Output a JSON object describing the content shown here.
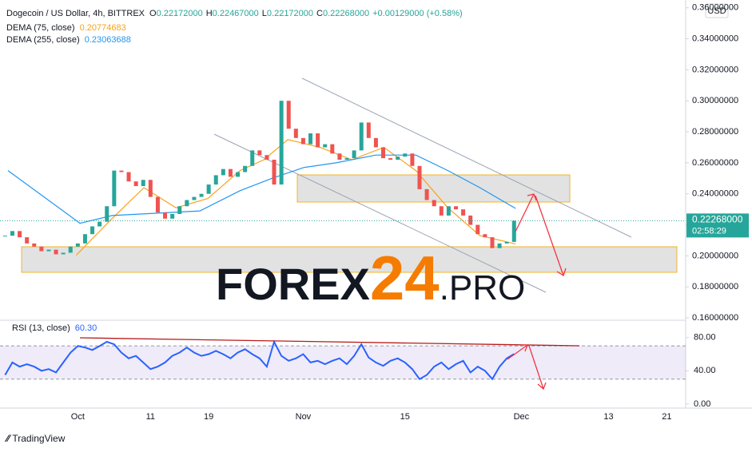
{
  "header": {
    "symbol": "Dogecoin / US Dollar, 4h, BITTREX",
    "ohlc": [
      {
        "label": "O",
        "value": "0.22172000"
      },
      {
        "label": "H",
        "value": "0.22467000"
      },
      {
        "label": "L",
        "value": "0.22172000"
      },
      {
        "label": "C",
        "value": "0.22268000"
      }
    ],
    "change": "+0.00129000 (+0.58%)"
  },
  "watermark": [
    "FOREX",
    "24",
    ".PRO"
  ],
  "branding": "TradingView",
  "chart_data": [
    {
      "type": "candlestick",
      "currency": "USD",
      "last_price_label": "0.22268000",
      "countdown": "02:58:29",
      "up_color": "#26a69a",
      "down_color": "#ef5350",
      "x": [
        0,
        1,
        2,
        3,
        4,
        5,
        6,
        7,
        8,
        9,
        10,
        11,
        12,
        13,
        14,
        15,
        16,
        17,
        18,
        19,
        20,
        21,
        22,
        23,
        24,
        25,
        26,
        27,
        28,
        29,
        30,
        31,
        32,
        33,
        34,
        35,
        36,
        37,
        38,
        39,
        40,
        41,
        42,
        43,
        44,
        45,
        46,
        47,
        48,
        49,
        50,
        51,
        52,
        53,
        54,
        55,
        56,
        57,
        58,
        59,
        60,
        61,
        62,
        63,
        64,
        65,
        66,
        67,
        68,
        69,
        70
      ],
      "values": [
        0.213,
        0.216,
        0.212,
        0.208,
        0.206,
        0.203,
        0.204,
        0.201,
        0.202,
        0.206,
        0.208,
        0.214,
        0.219,
        0.222,
        0.232,
        0.255,
        0.254,
        0.248,
        0.245,
        0.249,
        0.238,
        0.228,
        0.224,
        0.227,
        0.232,
        0.236,
        0.238,
        0.24,
        0.246,
        0.252,
        0.256,
        0.251,
        0.254,
        0.258,
        0.268,
        0.265,
        0.262,
        0.246,
        0.3,
        0.282,
        0.276,
        0.272,
        0.279,
        0.27,
        0.272,
        0.266,
        0.262,
        0.263,
        0.268,
        0.286,
        0.276,
        0.27,
        0.263,
        0.262,
        0.264,
        0.266,
        0.258,
        0.243,
        0.236,
        0.232,
        0.226,
        0.232,
        0.23,
        0.226,
        0.22,
        0.214,
        0.212,
        0.205,
        0.208,
        0.209,
        0.22268
      ],
      "series": [
        {
          "name": "DEMA (75, close)",
          "legend_value": "0.20774683",
          "color": "#f7a21b",
          "x": [
            9.8,
            14.7,
            19.1,
            23.5,
            27.9,
            32.3,
            35.6,
            38.9,
            43.3,
            47.7,
            52.1,
            56.5,
            60.9,
            65.3,
            70.2
          ],
          "values": [
            0.2005,
            0.224,
            0.244,
            0.231,
            0.237,
            0.255,
            0.262,
            0.275,
            0.27,
            0.262,
            0.27,
            0.255,
            0.231,
            0.213,
            0.2077
          ]
        },
        {
          "name": "DEMA (255, close)",
          "legend_value": "0.23063688",
          "color": "#2196f3",
          "x": [
            0.4,
            10.3,
            14.7,
            26.8,
            32.3,
            36.7,
            41.1,
            45.5,
            51,
            56.5,
            60.9,
            65.3,
            70.2
          ],
          "values": [
            0.255,
            0.221,
            0.226,
            0.229,
            0.242,
            0.25,
            0.257,
            0.26,
            0.265,
            0.265,
            0.255,
            0.244,
            0.2306
          ]
        }
      ],
      "xlim": [
        -0.7,
        93.6
      ],
      "xticks": [
        {
          "value": 10,
          "label": "Oct"
        },
        {
          "value": 20,
          "label": "11"
        },
        {
          "value": 28,
          "label": "19"
        },
        {
          "value": 41,
          "label": "Nov"
        },
        {
          "value": 55,
          "label": "15"
        },
        {
          "value": 71,
          "label": "Dec"
        },
        {
          "value": 83,
          "label": "13"
        },
        {
          "value": 91,
          "label": "21"
        }
      ],
      "ylim": [
        0.159,
        0.365
      ],
      "yticks": [
        {
          "value": 0.16,
          "label": "0.16000000"
        },
        {
          "value": 0.18,
          "label": "0.18000000"
        },
        {
          "value": 0.2,
          "label": "0.20000000"
        },
        {
          "value": 0.22,
          "label": "0.22000000"
        },
        {
          "value": 0.24,
          "label": "0.24000000"
        },
        {
          "value": 0.26,
          "label": "0.26000000"
        },
        {
          "value": 0.28,
          "label": "0.28000000"
        },
        {
          "value": 0.3,
          "label": "0.30000000"
        },
        {
          "value": 0.32,
          "label": "0.32000000"
        },
        {
          "value": 0.34,
          "label": "0.34000000"
        },
        {
          "value": 0.36,
          "label": "0.36000000"
        }
      ]
    },
    {
      "type": "line",
      "title": "RSI (13, close)",
      "legend_value": "60.30",
      "color": "#2962ff",
      "band": [
        30,
        70
      ],
      "band_color": "#7e57c2",
      "x": [
        0,
        1,
        2,
        3,
        4,
        5,
        6,
        7,
        8,
        9,
        10,
        11,
        12,
        13,
        14,
        15,
        16,
        17,
        18,
        19,
        20,
        21,
        22,
        23,
        24,
        25,
        26,
        27,
        28,
        29,
        30,
        31,
        32,
        33,
        34,
        35,
        36,
        37,
        38,
        39,
        40,
        41,
        42,
        43,
        44,
        45,
        46,
        47,
        48,
        49,
        50,
        51,
        52,
        53,
        54,
        55,
        56,
        57,
        58,
        59,
        60,
        61,
        62,
        63,
        64,
        65,
        66,
        67,
        68,
        69,
        70
      ],
      "values": [
        35,
        50,
        45,
        48,
        45,
        40,
        42,
        38,
        50,
        62,
        70,
        68,
        65,
        70,
        75,
        72,
        62,
        55,
        58,
        50,
        42,
        45,
        50,
        58,
        62,
        68,
        62,
        58,
        60,
        64,
        60,
        55,
        62,
        66,
        60,
        55,
        45,
        75,
        58,
        52,
        55,
        60,
        50,
        52,
        48,
        52,
        55,
        48,
        58,
        72,
        56,
        50,
        46,
        52,
        55,
        50,
        42,
        30,
        35,
        45,
        50,
        42,
        48,
        52,
        38,
        45,
        40,
        30,
        45,
        55,
        60.3
      ],
      "xlim": [
        -0.7,
        93.6
      ],
      "ylim": [
        -4,
        100
      ],
      "yticks": [
        {
          "value": 0,
          "label": "0.00"
        },
        {
          "value": 40,
          "label": "40.00"
        },
        {
          "value": 80,
          "label": "80.00"
        }
      ]
    }
  ]
}
